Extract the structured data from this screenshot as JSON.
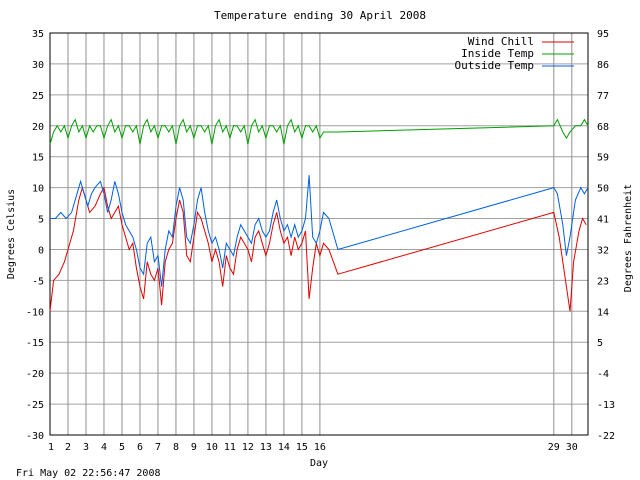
{
  "chart_data": {
    "type": "line",
    "title": "Temperature ending 30 April 2008",
    "xlabel": "Day",
    "ylabel": "Degrees Celsius",
    "ylabel_right": "Degrees Fahrenheit",
    "timestamp": "Fri May 02 22:56:47 2008",
    "ylim": [
      -30,
      35
    ],
    "yticks": [
      35,
      30,
      25,
      20,
      15,
      10,
      5,
      0,
      -5,
      -10,
      -15,
      -20,
      -25,
      -30
    ],
    "yticks_right": [
      "95",
      "86",
      "77",
      "68",
      "59",
      "50",
      "41",
      "32",
      "23",
      "14",
      "5",
      "-4",
      "-13",
      "-22"
    ],
    "xlim": [
      1,
      30.9
    ],
    "xticks": [
      {
        "x": 1,
        "label": "1"
      },
      {
        "x": 2,
        "label": "2"
      },
      {
        "x": 3,
        "label": "3"
      },
      {
        "x": 4,
        "label": "4"
      },
      {
        "x": 5,
        "label": "5"
      },
      {
        "x": 6,
        "label": "6"
      },
      {
        "x": 7,
        "label": "7"
      },
      {
        "x": 8,
        "label": "8"
      },
      {
        "x": 9,
        "label": "9"
      },
      {
        "x": 10,
        "label": "10"
      },
      {
        "x": 11,
        "label": "11"
      },
      {
        "x": 12,
        "label": "12"
      },
      {
        "x": 13,
        "label": "13"
      },
      {
        "x": 14,
        "label": "14"
      },
      {
        "x": 15,
        "label": "15"
      },
      {
        "x": 16,
        "label": "16"
      },
      {
        "x": 29,
        "label": "29"
      },
      {
        "x": 30,
        "label": "30"
      }
    ],
    "vlines": [
      2,
      3,
      4,
      5,
      6,
      7,
      8,
      9,
      10,
      11,
      12,
      13,
      14,
      15,
      16,
      29,
      30
    ],
    "grid": true,
    "legend_position": "top-right",
    "series": [
      {
        "name": "Wind Chill",
        "color": "#e00000",
        "points": [
          [
            1.0,
            -10
          ],
          [
            1.2,
            -5
          ],
          [
            1.5,
            -4
          ],
          [
            1.8,
            -2
          ],
          [
            2.0,
            0
          ],
          [
            2.3,
            3
          ],
          [
            2.6,
            8
          ],
          [
            2.8,
            10
          ],
          [
            3.0,
            8
          ],
          [
            3.2,
            6
          ],
          [
            3.5,
            7
          ],
          [
            3.8,
            9
          ],
          [
            4.0,
            10
          ],
          [
            4.2,
            7
          ],
          [
            4.4,
            5
          ],
          [
            4.6,
            6
          ],
          [
            4.8,
            7
          ],
          [
            5.0,
            4
          ],
          [
            5.2,
            2
          ],
          [
            5.4,
            0
          ],
          [
            5.6,
            1
          ],
          [
            5.8,
            -3
          ],
          [
            6.0,
            -6
          ],
          [
            6.2,
            -8
          ],
          [
            6.4,
            -2
          ],
          [
            6.6,
            -4
          ],
          [
            6.8,
            -5
          ],
          [
            7.0,
            -3
          ],
          [
            7.2,
            -9
          ],
          [
            7.4,
            -2
          ],
          [
            7.6,
            0
          ],
          [
            7.8,
            1
          ],
          [
            8.0,
            5
          ],
          [
            8.2,
            8
          ],
          [
            8.4,
            6
          ],
          [
            8.6,
            -1
          ],
          [
            8.8,
            -2
          ],
          [
            9.0,
            2
          ],
          [
            9.2,
            6
          ],
          [
            9.4,
            5
          ],
          [
            9.6,
            3
          ],
          [
            9.8,
            1
          ],
          [
            10.0,
            -2
          ],
          [
            10.2,
            0
          ],
          [
            10.4,
            -2
          ],
          [
            10.6,
            -6
          ],
          [
            10.8,
            -1
          ],
          [
            11.0,
            -3
          ],
          [
            11.2,
            -4
          ],
          [
            11.4,
            0
          ],
          [
            11.6,
            2
          ],
          [
            11.8,
            1
          ],
          [
            12.0,
            0
          ],
          [
            12.2,
            -2
          ],
          [
            12.4,
            2
          ],
          [
            12.6,
            3
          ],
          [
            12.8,
            1
          ],
          [
            13.0,
            -1
          ],
          [
            13.2,
            1
          ],
          [
            13.4,
            4
          ],
          [
            13.6,
            6
          ],
          [
            13.8,
            3
          ],
          [
            14.0,
            1
          ],
          [
            14.2,
            2
          ],
          [
            14.4,
            -1
          ],
          [
            14.6,
            2
          ],
          [
            14.8,
            0
          ],
          [
            15.0,
            1
          ],
          [
            15.2,
            3
          ],
          [
            15.4,
            -8
          ],
          [
            15.6,
            -3
          ],
          [
            15.8,
            1
          ],
          [
            16.0,
            -1
          ],
          [
            16.2,
            1
          ],
          [
            16.5,
            0
          ],
          [
            17.0,
            -4
          ],
          [
            29.0,
            6
          ],
          [
            29.3,
            2
          ],
          [
            29.6,
            -4
          ],
          [
            29.8,
            -8
          ],
          [
            29.9,
            -10
          ],
          [
            30.1,
            -2
          ],
          [
            30.4,
            3
          ],
          [
            30.6,
            5
          ],
          [
            30.8,
            4
          ]
        ]
      },
      {
        "name": "Inside Temp",
        "color": "#00a000",
        "points": [
          [
            1.0,
            17
          ],
          [
            1.2,
            19
          ],
          [
            1.4,
            20
          ],
          [
            1.6,
            19
          ],
          [
            1.8,
            20
          ],
          [
            2.0,
            18
          ],
          [
            2.2,
            20
          ],
          [
            2.4,
            21
          ],
          [
            2.6,
            19
          ],
          [
            2.8,
            20
          ],
          [
            3.0,
            18
          ],
          [
            3.2,
            20
          ],
          [
            3.4,
            19
          ],
          [
            3.6,
            20
          ],
          [
            3.8,
            20
          ],
          [
            4.0,
            18
          ],
          [
            4.2,
            20
          ],
          [
            4.4,
            21
          ],
          [
            4.6,
            19
          ],
          [
            4.8,
            20
          ],
          [
            5.0,
            18
          ],
          [
            5.2,
            20
          ],
          [
            5.4,
            20
          ],
          [
            5.6,
            19
          ],
          [
            5.8,
            20
          ],
          [
            6.0,
            17
          ],
          [
            6.2,
            20
          ],
          [
            6.4,
            21
          ],
          [
            6.6,
            19
          ],
          [
            6.8,
            20
          ],
          [
            7.0,
            18
          ],
          [
            7.2,
            20
          ],
          [
            7.4,
            20
          ],
          [
            7.6,
            19
          ],
          [
            7.8,
            20
          ],
          [
            8.0,
            17
          ],
          [
            8.2,
            20
          ],
          [
            8.4,
            21
          ],
          [
            8.6,
            19
          ],
          [
            8.8,
            20
          ],
          [
            9.0,
            18
          ],
          [
            9.2,
            20
          ],
          [
            9.4,
            20
          ],
          [
            9.6,
            19
          ],
          [
            9.8,
            20
          ],
          [
            10.0,
            17
          ],
          [
            10.2,
            20
          ],
          [
            10.4,
            21
          ],
          [
            10.6,
            19
          ],
          [
            10.8,
            20
          ],
          [
            11.0,
            18
          ],
          [
            11.2,
            20
          ],
          [
            11.4,
            20
          ],
          [
            11.6,
            19
          ],
          [
            11.8,
            20
          ],
          [
            12.0,
            17
          ],
          [
            12.2,
            20
          ],
          [
            12.4,
            21
          ],
          [
            12.6,
            19
          ],
          [
            12.8,
            20
          ],
          [
            13.0,
            18
          ],
          [
            13.2,
            20
          ],
          [
            13.4,
            20
          ],
          [
            13.6,
            19
          ],
          [
            13.8,
            20
          ],
          [
            14.0,
            17
          ],
          [
            14.2,
            20
          ],
          [
            14.4,
            21
          ],
          [
            14.6,
            19
          ],
          [
            14.8,
            20
          ],
          [
            15.0,
            18
          ],
          [
            15.2,
            20
          ],
          [
            15.4,
            20
          ],
          [
            15.6,
            19
          ],
          [
            15.8,
            20
          ],
          [
            16.0,
            18
          ],
          [
            16.2,
            19
          ],
          [
            16.5,
            19
          ],
          [
            17.0,
            19
          ],
          [
            29.0,
            20
          ],
          [
            29.2,
            21
          ],
          [
            29.5,
            19
          ],
          [
            29.7,
            18
          ],
          [
            29.9,
            19
          ],
          [
            30.2,
            20
          ],
          [
            30.5,
            20
          ],
          [
            30.7,
            21
          ],
          [
            30.9,
            20
          ]
        ]
      },
      {
        "name": "Outside Temp",
        "color": "#0060e0",
        "points": [
          [
            1.0,
            5
          ],
          [
            1.3,
            5
          ],
          [
            1.6,
            6
          ],
          [
            1.9,
            5
          ],
          [
            2.2,
            6
          ],
          [
            2.5,
            9
          ],
          [
            2.7,
            11
          ],
          [
            2.9,
            9
          ],
          [
            3.1,
            7
          ],
          [
            3.3,
            9
          ],
          [
            3.5,
            10
          ],
          [
            3.8,
            11
          ],
          [
            4.0,
            9
          ],
          [
            4.2,
            6
          ],
          [
            4.4,
            8
          ],
          [
            4.6,
            11
          ],
          [
            4.8,
            9
          ],
          [
            5.0,
            6
          ],
          [
            5.2,
            4
          ],
          [
            5.4,
            3
          ],
          [
            5.6,
            2
          ],
          [
            5.8,
            0
          ],
          [
            6.0,
            -3
          ],
          [
            6.2,
            -4
          ],
          [
            6.4,
            1
          ],
          [
            6.6,
            2
          ],
          [
            6.8,
            -2
          ],
          [
            7.0,
            -1
          ],
          [
            7.2,
            -6
          ],
          [
            7.4,
            0
          ],
          [
            7.6,
            3
          ],
          [
            7.8,
            2
          ],
          [
            8.0,
            7
          ],
          [
            8.2,
            10
          ],
          [
            8.4,
            8
          ],
          [
            8.6,
            2
          ],
          [
            8.8,
            1
          ],
          [
            9.0,
            4
          ],
          [
            9.2,
            8
          ],
          [
            9.4,
            10
          ],
          [
            9.6,
            6
          ],
          [
            9.8,
            3
          ],
          [
            10.0,
            1
          ],
          [
            10.2,
            2
          ],
          [
            10.4,
            0
          ],
          [
            10.6,
            -3
          ],
          [
            10.8,
            1
          ],
          [
            11.0,
            0
          ],
          [
            11.2,
            -1
          ],
          [
            11.4,
            2
          ],
          [
            11.6,
            4
          ],
          [
            11.8,
            3
          ],
          [
            12.0,
            2
          ],
          [
            12.2,
            1
          ],
          [
            12.4,
            4
          ],
          [
            12.6,
            5
          ],
          [
            12.8,
            3
          ],
          [
            13.0,
            2
          ],
          [
            13.2,
            3
          ],
          [
            13.4,
            6
          ],
          [
            13.6,
            8
          ],
          [
            13.8,
            5
          ],
          [
            14.0,
            3
          ],
          [
            14.2,
            4
          ],
          [
            14.4,
            2
          ],
          [
            14.6,
            4
          ],
          [
            14.8,
            2
          ],
          [
            15.0,
            3
          ],
          [
            15.2,
            5
          ],
          [
            15.4,
            12
          ],
          [
            15.6,
            2
          ],
          [
            15.8,
            1
          ],
          [
            16.0,
            3
          ],
          [
            16.2,
            6
          ],
          [
            16.5,
            5
          ],
          [
            17.0,
            0
          ],
          [
            29.0,
            10
          ],
          [
            29.2,
            9
          ],
          [
            29.5,
            4
          ],
          [
            29.7,
            -1
          ],
          [
            29.9,
            2
          ],
          [
            30.2,
            8
          ],
          [
            30.5,
            10
          ],
          [
            30.7,
            9
          ],
          [
            30.9,
            10
          ]
        ]
      }
    ]
  }
}
